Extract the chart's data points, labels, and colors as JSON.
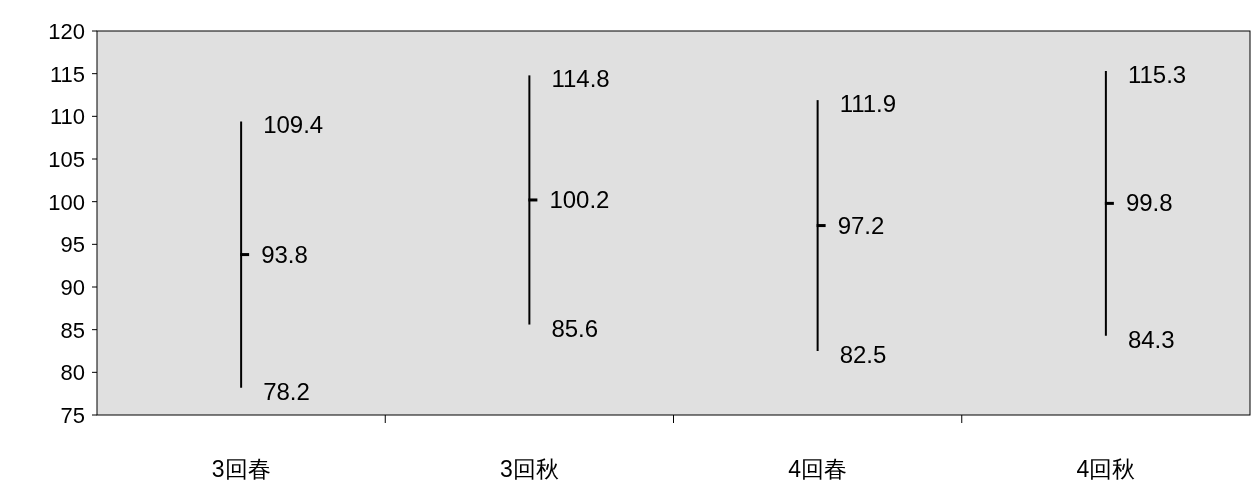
{
  "chart_data": {
    "type": "scatter",
    "categories": [
      "3回春",
      "3回秋",
      "4回春",
      "4回秋"
    ],
    "series": [
      {
        "color": "#000000",
        "values": [
          93.8,
          100.2,
          97.2,
          99.8
        ],
        "errors": [
          15.6,
          14.6,
          14.7,
          15.5
        ]
      }
    ],
    "data_labels": true,
    "ylim": [
      75,
      120
    ],
    "yticks": [
      75,
      80,
      85,
      90,
      95,
      100,
      105,
      110,
      115,
      120
    ],
    "grid": false,
    "annotations": [
      {
        "text": "109.4",
        "x": "3回春",
        "y": 109.4
      },
      {
        "text": "78.2",
        "x": "3回春",
        "y": 78.2
      },
      {
        "text": "114.8",
        "x": "3回秋",
        "y": 114.8
      },
      {
        "text": "85.6",
        "x": "3回秋",
        "y": 85.6
      },
      {
        "text": "111.9",
        "x": "4回春",
        "y": 111.9
      },
      {
        "text": "82.5",
        "x": "4回春",
        "y": 82.5
      },
      {
        "text": "115.3",
        "x": "4回秋",
        "y": 115.3
      },
      {
        "text": "84.3",
        "x": "4回秋",
        "y": 84.3
      }
    ]
  }
}
